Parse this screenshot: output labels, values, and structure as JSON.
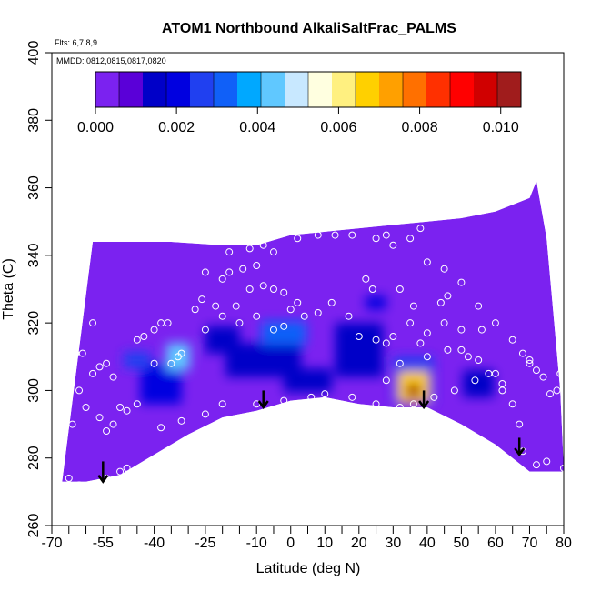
{
  "chart_data": {
    "type": "heatmap",
    "title": "ATOM1 Northbound AlkaliSaltFrac_PALMS",
    "subtitle_flights": "Flts: 6,7,8,9",
    "subtitle_dates": "MMDD: 0812,0815,0817,0820",
    "xlabel": "Latitude (deg N)",
    "ylabel": "Theta (C)",
    "xlim": [
      -70,
      80
    ],
    "ylim": [
      260,
      400
    ],
    "x_ticks": [
      -70,
      -55,
      -40,
      -25,
      -10,
      0,
      10,
      20,
      30,
      40,
      50,
      60,
      70,
      80
    ],
    "x_minor_ticks": [
      -65,
      -60,
      -50,
      -45,
      -35,
      -30,
      -20,
      -15,
      -5,
      5,
      15,
      25,
      35,
      45,
      55,
      65,
      75
    ],
    "y_ticks": [
      260,
      280,
      300,
      320,
      340,
      360,
      380,
      400
    ],
    "colorbar": {
      "range": [
        0,
        0.0105
      ],
      "tick_values": [
        0,
        0.002,
        0.004,
        0.006,
        0.008,
        0.01
      ],
      "tick_labels": [
        "0.000",
        "0.002",
        "0.004",
        "0.006",
        "0.008",
        "0.010"
      ],
      "colors": [
        "#7b22f0",
        "#5a00d8",
        "#0000c8",
        "#0000e0",
        "#2040f0",
        "#1060f8",
        "#00a8ff",
        "#60c8ff",
        "#c8e8ff",
        "#ffffe0",
        "#fff080",
        "#ffd000",
        "#ffa000",
        "#ff7000",
        "#ff3000",
        "#ff0000",
        "#d00000",
        "#a01c1c"
      ]
    },
    "coverage": {
      "upper_theta": [
        [
          -58,
          344
        ],
        [
          -45,
          344
        ],
        [
          -35,
          344
        ],
        [
          -20,
          343
        ],
        [
          -10,
          343
        ],
        [
          0,
          346
        ],
        [
          10,
          347
        ],
        [
          20,
          348
        ],
        [
          30,
          349
        ],
        [
          40,
          350
        ],
        [
          50,
          351
        ],
        [
          60,
          353
        ],
        [
          70,
          357
        ],
        [
          72,
          362
        ],
        [
          75,
          345
        ],
        [
          79,
          300
        ],
        [
          80,
          277
        ]
      ],
      "lower_theta": [
        [
          -67,
          273
        ],
        [
          -60,
          273
        ],
        [
          -50,
          275
        ],
        [
          -40,
          281
        ],
        [
          -30,
          287
        ],
        [
          -20,
          292
        ],
        [
          -10,
          294
        ],
        [
          0,
          297
        ],
        [
          10,
          298
        ],
        [
          20,
          296
        ],
        [
          30,
          295
        ],
        [
          40,
          295
        ],
        [
          50,
          290
        ],
        [
          60,
          284
        ],
        [
          70,
          276
        ],
        [
          80,
          276
        ]
      ]
    },
    "features": [
      {
        "lat": -45,
        "theta": 309,
        "value": 0.0025,
        "width": 8,
        "height": 5
      },
      {
        "lat": -33,
        "theta": 310,
        "value": 0.0042,
        "width": 7,
        "height": 8
      },
      {
        "lat": -38,
        "theta": 302,
        "value": 0.0018,
        "width": 12,
        "height": 12
      },
      {
        "lat": -2,
        "theta": 317,
        "value": 0.0032,
        "width": 13,
        "height": 7
      },
      {
        "lat": -8,
        "theta": 309,
        "value": 0.0015,
        "width": 22,
        "height": 10
      },
      {
        "lat": 5,
        "theta": 303,
        "value": 0.0015,
        "width": 14,
        "height": 7
      },
      {
        "lat": 25,
        "theta": 326,
        "value": 0.002,
        "width": 6,
        "height": 4
      },
      {
        "lat": 36,
        "theta": 300,
        "value": 0.0105,
        "width": 4,
        "height": 4
      },
      {
        "lat": 36,
        "theta": 301,
        "value": 0.0065,
        "width": 9,
        "height": 9
      },
      {
        "lat": 36,
        "theta": 303,
        "value": 0.0025,
        "width": 12,
        "height": 14
      },
      {
        "lat": 55,
        "theta": 302,
        "value": 0.0016,
        "width": 9,
        "height": 8
      },
      {
        "lat": 20,
        "theta": 312,
        "value": 0.0012,
        "width": 14,
        "height": 16
      },
      {
        "lat": -20,
        "theta": 315,
        "value": 0.0012,
        "width": 10,
        "height": 8
      }
    ],
    "points": [
      [
        -65,
        274
      ],
      [
        -62,
        272
      ],
      [
        -58,
        272
      ],
      [
        -54,
        274
      ],
      [
        -50,
        276
      ],
      [
        -48,
        277
      ],
      [
        -64,
        290
      ],
      [
        -60,
        295
      ],
      [
        -56,
        292
      ],
      [
        -54,
        288
      ],
      [
        -52,
        290
      ],
      [
        -50,
        295
      ],
      [
        -66,
        302
      ],
      [
        -62,
        300
      ],
      [
        -58,
        305
      ],
      [
        -56,
        307
      ],
      [
        -54,
        308
      ],
      [
        -52,
        304
      ],
      [
        -64,
        309
      ],
      [
        -63,
        311
      ],
      [
        -61,
        311
      ],
      [
        -58,
        320
      ],
      [
        -45,
        315
      ],
      [
        -43,
        316
      ],
      [
        -40,
        318
      ],
      [
        -38,
        320
      ],
      [
        -36,
        320
      ],
      [
        -33,
        310
      ],
      [
        -32,
        311
      ],
      [
        -35,
        308
      ],
      [
        -28,
        324
      ],
      [
        -26,
        327
      ],
      [
        -22,
        325
      ],
      [
        -20,
        322
      ],
      [
        -16,
        325
      ],
      [
        -12,
        330
      ],
      [
        -8,
        331
      ],
      [
        -5,
        330
      ],
      [
        -2,
        329
      ],
      [
        0,
        324
      ],
      [
        2,
        326
      ],
      [
        4,
        322
      ],
      [
        -20,
        333
      ],
      [
        -18,
        335
      ],
      [
        -14,
        336
      ],
      [
        -10,
        337
      ],
      [
        -25,
        335
      ],
      [
        -18,
        341
      ],
      [
        -12,
        342
      ],
      [
        -8,
        343
      ],
      [
        -5,
        341
      ],
      [
        2,
        345
      ],
      [
        8,
        346
      ],
      [
        13,
        346
      ],
      [
        18,
        346
      ],
      [
        25,
        345
      ],
      [
        28,
        346
      ],
      [
        30,
        343
      ],
      [
        35,
        345
      ],
      [
        38,
        348
      ],
      [
        40,
        338
      ],
      [
        45,
        336
      ],
      [
        50,
        332
      ],
      [
        55,
        325
      ],
      [
        60,
        320
      ],
      [
        65,
        315
      ],
      [
        68,
        311
      ],
      [
        70,
        309
      ],
      [
        72,
        306
      ],
      [
        74,
        304
      ],
      [
        78,
        300
      ],
      [
        80,
        277
      ],
      [
        75,
        279
      ],
      [
        72,
        278
      ],
      [
        68,
        282
      ],
      [
        65,
        296
      ],
      [
        62,
        300
      ],
      [
        60,
        305
      ],
      [
        56,
        318
      ],
      [
        50,
        318
      ],
      [
        45,
        320
      ],
      [
        40,
        317
      ],
      [
        38,
        314
      ],
      [
        35,
        320
      ],
      [
        30,
        316
      ],
      [
        28,
        314
      ],
      [
        25,
        315
      ],
      [
        20,
        316
      ],
      [
        17,
        322
      ],
      [
        12,
        326
      ],
      [
        8,
        323
      ],
      [
        -2,
        319
      ],
      [
        -5,
        318
      ],
      [
        -10,
        322
      ],
      [
        -15,
        320
      ],
      [
        -25,
        318
      ],
      [
        -40,
        308
      ],
      [
        -45,
        296
      ],
      [
        -48,
        294
      ],
      [
        -38,
        289
      ],
      [
        -32,
        291
      ],
      [
        -25,
        293
      ],
      [
        -20,
        296
      ],
      [
        -10,
        296
      ],
      [
        -2,
        297
      ],
      [
        6,
        298
      ],
      [
        10,
        299
      ],
      [
        18,
        298
      ],
      [
        25,
        296
      ],
      [
        32,
        295
      ],
      [
        36,
        296
      ],
      [
        42,
        298
      ],
      [
        48,
        300
      ],
      [
        54,
        303
      ],
      [
        58,
        305
      ],
      [
        62,
        302
      ],
      [
        28,
        303
      ],
      [
        32,
        308
      ],
      [
        40,
        310
      ],
      [
        46,
        312
      ],
      [
        50,
        312
      ],
      [
        52,
        310
      ],
      [
        55,
        309
      ],
      [
        24,
        330
      ],
      [
        22,
        333
      ],
      [
        32,
        330
      ],
      [
        36,
        325
      ],
      [
        44,
        326
      ],
      [
        46,
        328
      ],
      [
        76,
        299
      ],
      [
        70,
        308
      ],
      [
        79,
        305
      ],
      [
        67,
        290
      ]
    ],
    "arrows": [
      {
        "lat": -55,
        "theta_top": 279,
        "theta_bottom": 273
      },
      {
        "lat": -8,
        "theta_top": 300,
        "theta_bottom": 295
      },
      {
        "lat": 39,
        "theta_top": 300,
        "theta_bottom": 295
      },
      {
        "lat": 67,
        "theta_top": 286,
        "theta_bottom": 281
      }
    ]
  }
}
